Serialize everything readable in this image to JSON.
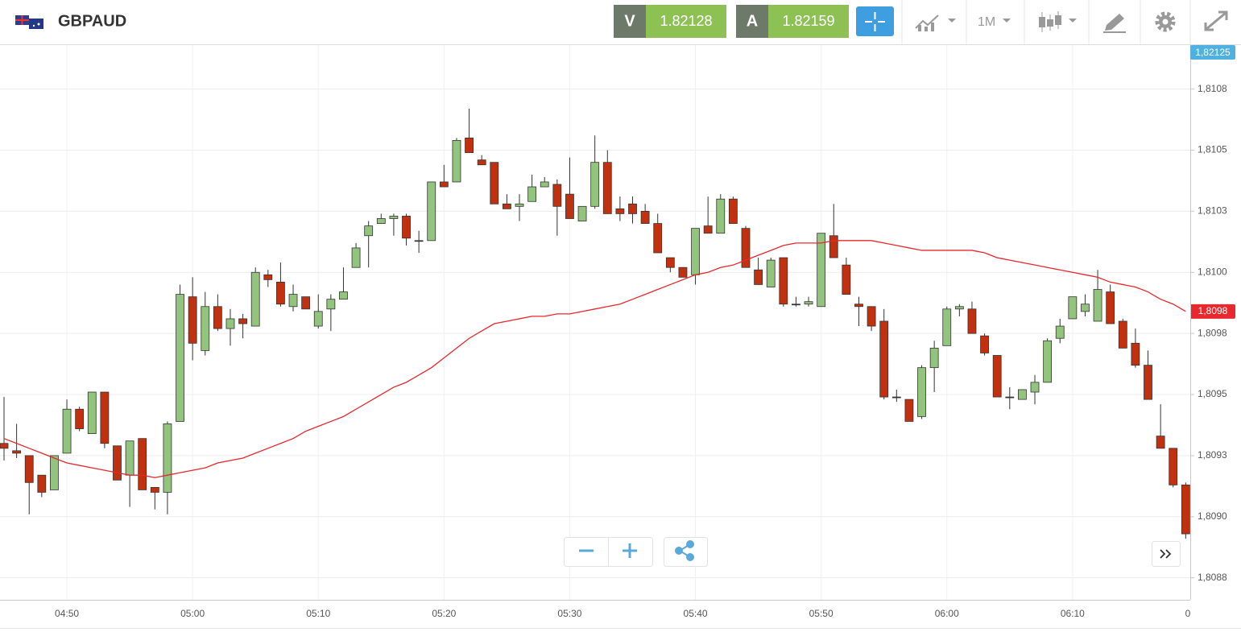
{
  "header": {
    "symbol": "GBPAUD",
    "bid_label": "V",
    "bid": 1.82128,
    "ask_label": "A",
    "ask": 1.82159,
    "timeframe": "1M"
  },
  "chart_data": {
    "type": "candlestick",
    "categories": [
      null,
      null,
      null,
      null,
      null,
      "04:50",
      null,
      null,
      null,
      null,
      null,
      null,
      null,
      null,
      null,
      "05:00",
      null,
      null,
      null,
      null,
      null,
      null,
      null,
      null,
      null,
      "05:10",
      null,
      null,
      null,
      null,
      null,
      null,
      null,
      null,
      null,
      "05:20",
      null,
      null,
      null,
      null,
      null,
      null,
      null,
      null,
      null,
      "05:30",
      null,
      null,
      null,
      null,
      null,
      null,
      null,
      null,
      null,
      "05:40",
      null,
      null,
      null,
      null,
      null,
      null,
      null,
      null,
      null,
      "05:50",
      null,
      null,
      null,
      null,
      null,
      null,
      null,
      null,
      null,
      "06:00",
      null,
      null,
      null,
      null,
      null,
      null,
      null,
      null,
      null,
      "06:10",
      null,
      null,
      null,
      null,
      null,
      null,
      null,
      null,
      null
    ],
    "open": [
      1.8093,
      1.80927,
      1.80925,
      1.80917,
      1.80911,
      1.80926,
      1.80944,
      1.80934,
      1.80951,
      1.80929,
      1.80917,
      1.80932,
      1.80912,
      1.8091,
      1.80939,
      1.8099,
      1.80968,
      1.80986,
      1.80977,
      1.80981,
      1.80978,
      1.80999,
      1.80996,
      1.80986,
      1.8099,
      1.80978,
      1.80985,
      1.80989,
      1.81002,
      1.81015,
      1.8102,
      1.81022,
      1.81023,
      1.81013,
      1.81013,
      1.81037,
      1.81037,
      1.81055,
      1.81046,
      1.81045,
      1.81028,
      1.81027,
      1.81029,
      1.81035,
      1.81036,
      1.81032,
      1.81021,
      1.81027,
      1.81045,
      1.81026,
      1.81028,
      1.81025,
      1.8102,
      1.81006,
      1.81002,
      1.80999,
      1.81019,
      1.81016,
      1.8103,
      1.81018,
      1.81001,
      1.80994,
      1.81006,
      1.80987,
      1.80987,
      1.80986,
      1.81015,
      1.81003,
      1.80987,
      1.80986,
      1.8098,
      1.80949,
      1.80948,
      1.80941,
      1.80961,
      1.8097,
      1.80985,
      1.80985,
      1.80974,
      1.80966,
      1.80949,
      1.80948,
      1.80951,
      1.80955,
      1.80973,
      1.80981,
      1.80984,
      1.8098,
      1.80992,
      1.8098,
      1.80971,
      1.80962,
      1.80933,
      1.80928,
      1.80913
    ],
    "high": [
      1.80949,
      1.80938,
      1.80925,
      1.80917,
      1.80925,
      1.80948,
      1.80945,
      1.80951,
      1.80951,
      1.80929,
      1.80931,
      1.80932,
      1.80912,
      1.80939,
      1.80995,
      1.80998,
      1.80992,
      1.80991,
      1.80985,
      1.80983,
      1.81002,
      1.81001,
      1.81004,
      1.80995,
      1.8099,
      1.80991,
      1.80991,
      1.81002,
      1.81012,
      1.81021,
      1.81024,
      1.81024,
      1.81024,
      1.81017,
      1.81037,
      1.81044,
      1.81055,
      1.81067,
      1.81048,
      1.81045,
      1.81032,
      1.81032,
      1.8104,
      1.81039,
      1.81038,
      1.81047,
      1.81027,
      1.81056,
      1.8105,
      1.81031,
      1.81031,
      1.81028,
      1.81024,
      1.81006,
      1.81002,
      1.81018,
      1.81031,
      1.81032,
      1.81031,
      1.81019,
      1.81006,
      1.81006,
      1.81006,
      1.8099,
      1.8099,
      1.81016,
      1.81028,
      1.81006,
      1.8099,
      1.80986,
      1.80985,
      1.80952,
      1.80948,
      1.80962,
      1.80972,
      1.80986,
      1.80987,
      1.80988,
      1.80975,
      1.80966,
      1.80953,
      1.80952,
      1.80958,
      1.80973,
      1.80981,
      1.8099,
      1.80991,
      1.81001,
      1.80995,
      1.80981,
      1.80977,
      1.80968,
      1.80946,
      1.80928,
      1.80914
    ],
    "low": [
      1.80923,
      1.80924,
      1.80901,
      1.80908,
      1.80911,
      1.80926,
      1.80935,
      1.80934,
      1.80928,
      1.80915,
      1.80904,
      1.80911,
      1.80903,
      1.80901,
      1.80939,
      1.80964,
      1.80966,
      1.80976,
      1.8097,
      1.80973,
      1.80978,
      1.80994,
      1.80986,
      1.80984,
      1.80985,
      1.80977,
      1.80976,
      1.80989,
      1.81002,
      1.81002,
      1.8102,
      1.81015,
      1.81011,
      1.81008,
      1.81013,
      1.81035,
      1.81037,
      1.81049,
      1.81044,
      1.81028,
      1.81026,
      1.81021,
      1.81029,
      1.81035,
      1.81015,
      1.81022,
      1.81021,
      1.81026,
      1.81024,
      1.81021,
      1.8102,
      1.8102,
      1.81008,
      1.81,
      1.80998,
      1.80995,
      1.81016,
      1.81016,
      1.8102,
      1.81002,
      1.80995,
      1.80994,
      1.80986,
      1.80986,
      1.80986,
      1.80986,
      1.81006,
      1.80991,
      1.80978,
      1.80976,
      1.80948,
      1.80947,
      1.80939,
      1.8094,
      1.80951,
      1.8097,
      1.80982,
      1.80975,
      1.80966,
      1.80949,
      1.80944,
      1.80948,
      1.80946,
      1.80955,
      1.80971,
      1.80981,
      1.80982,
      1.8098,
      1.80979,
      1.80969,
      1.80961,
      1.80948,
      1.80928,
      1.80912,
      1.80891
    ],
    "close": [
      1.80928,
      1.80926,
      1.80914,
      1.8091,
      1.80925,
      1.80944,
      1.80936,
      1.80951,
      1.8093,
      1.80915,
      1.80931,
      1.80911,
      1.8091,
      1.80938,
      1.80991,
      1.80971,
      1.80986,
      1.80977,
      1.80981,
      1.80979,
      1.81,
      1.80997,
      1.80987,
      1.80991,
      1.80985,
      1.80984,
      1.80989,
      1.80992,
      1.8101,
      1.81019,
      1.81022,
      1.81023,
      1.81014,
      1.81013,
      1.81037,
      1.81035,
      1.81054,
      1.81049,
      1.81044,
      1.81028,
      1.81026,
      1.81028,
      1.81035,
      1.81037,
      1.81027,
      1.81022,
      1.81027,
      1.81045,
      1.81024,
      1.81024,
      1.81024,
      1.8102,
      1.81008,
      1.81002,
      1.80998,
      1.81018,
      1.81016,
      1.8103,
      1.8102,
      1.81002,
      1.80995,
      1.81005,
      1.80987,
      1.80987,
      1.80988,
      1.81016,
      1.81006,
      1.80991,
      1.80986,
      1.80978,
      1.80949,
      1.80949,
      1.80939,
      1.80961,
      1.80969,
      1.80985,
      1.80986,
      1.80975,
      1.80967,
      1.80949,
      1.80949,
      1.80952,
      1.80955,
      1.80972,
      1.80978,
      1.8099,
      1.80987,
      1.80993,
      1.80979,
      1.80969,
      1.80962,
      1.80948,
      1.80928,
      1.80913,
      1.80893
    ],
    "up_color": "#93c47d",
    "down_color": "#c1300f",
    "overlay": {
      "type": "line",
      "color": "#e8282c",
      "last_label": "1,8098",
      "values": [
        1.80932,
        1.8093,
        1.80928,
        1.80926,
        1.80924,
        1.80922,
        1.80921,
        1.8092,
        1.80919,
        1.80918,
        1.80917,
        1.80917,
        1.80916,
        1.80917,
        1.80918,
        1.80919,
        1.8092,
        1.80922,
        1.80923,
        1.80924,
        1.80926,
        1.80928,
        1.8093,
        1.80932,
        1.80935,
        1.80937,
        1.80939,
        1.80941,
        1.80944,
        1.80947,
        1.8095,
        1.80953,
        1.80955,
        1.80958,
        1.80961,
        1.80965,
        1.80969,
        1.80973,
        1.80976,
        1.80979,
        1.8098,
        1.80981,
        1.80982,
        1.80982,
        1.80983,
        1.80983,
        1.80984,
        1.80985,
        1.80986,
        1.80987,
        1.80989,
        1.80991,
        1.80993,
        1.80995,
        1.80997,
        1.80999,
        1.81,
        1.81002,
        1.81003,
        1.81005,
        1.81007,
        1.81009,
        1.81011,
        1.81012,
        1.81012,
        1.81012,
        1.81013,
        1.81013,
        1.81013,
        1.81013,
        1.81012,
        1.81011,
        1.8101,
        1.81009,
        1.81009,
        1.81009,
        1.81009,
        1.81009,
        1.81008,
        1.81006,
        1.81005,
        1.81004,
        1.81003,
        1.81002,
        1.81001,
        1.81,
        1.80999,
        1.80998,
        1.80996,
        1.80995,
        1.80994,
        1.80992,
        1.80989,
        1.80987,
        1.80984
      ]
    },
    "price_tag": "1,82125",
    "xaxis_edge_label": "0",
    "ylim": [
      1.80866,
      1.81093
    ],
    "yticks": [
      {
        "value": 1.80875,
        "label": "1,8088"
      },
      {
        "value": 1.809,
        "label": "1,8090"
      },
      {
        "value": 1.80925,
        "label": "1,8093"
      },
      {
        "value": 1.8095,
        "label": "1,8095"
      },
      {
        "value": 1.80975,
        "label": "1,8098"
      },
      {
        "value": 1.81,
        "label": "1,8100"
      },
      {
        "value": 1.81025,
        "label": "1,8103"
      },
      {
        "value": 1.8105,
        "label": "1,8105"
      },
      {
        "value": 1.81075,
        "label": "1,8108"
      }
    ],
    "grid": true
  }
}
